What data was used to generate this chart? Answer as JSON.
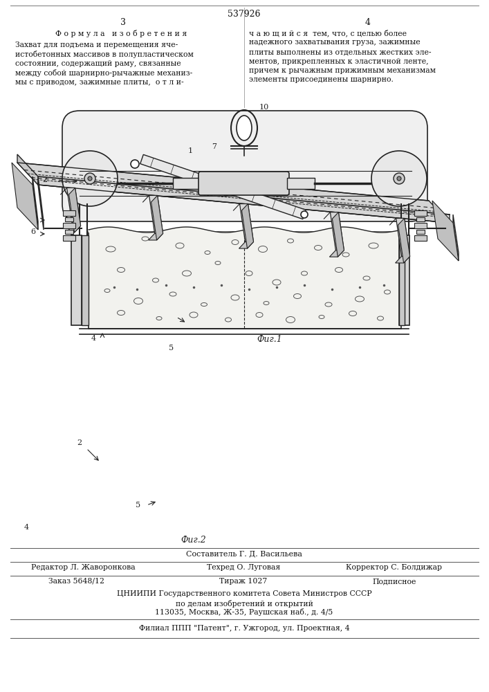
{
  "bg_color": "#ffffff",
  "page_color": "#ffffff",
  "text_color": "#111111",
  "title_patent": "537926",
  "page_left": "3",
  "page_right": "4",
  "formula_header": "Ф о р м у л а   и з о б р е т е н и я",
  "left_text": [
    "Захват для подъема и перемещения яче-",
    "истобетонных массивов в полупластическом",
    "состоянии, содержащий раму, связанные",
    "между собой шарнирно-рычажные механиз-",
    "мы с приводом, зажимные плиты,  о т л и-"
  ],
  "right_text": [
    "ч а ю щ и й с я  тем, что, с целью более",
    "надежного захватывания груза, зажимные",
    "плиты выполнены из отдельных жестких эле-",
    "ментов, прикрепленных к эластичной ленте,",
    "причем к рычажным прижимным механизмам",
    "элементы присоединены шарнирно."
  ],
  "fig1_caption": "Фиг.1",
  "fig2_caption": "Фиг.2",
  "composer_line": "Составитель Г. Д. Васильева",
  "editor_line": "Редактор Л. Жаворонкова",
  "techred_line": "Техред О. Луговая",
  "corrector_line": "Корректор С. Болдижар",
  "order_line": "Заказ 5648/12",
  "tirage_line": "Тираж 1027",
  "podpisnoe_line": "Подписное",
  "cniippi_line": "ЦНИИПИ Государственного комитета Совета Министров СССР",
  "affairs_line": "по делам изобретений и открытий",
  "address_line": "113035, Москва, Ж-35, Раушская наб., д. 4/5",
  "filial_line": "Филиал ППП \"Патент\", г. Ужгород, ул. Проектная, 4"
}
